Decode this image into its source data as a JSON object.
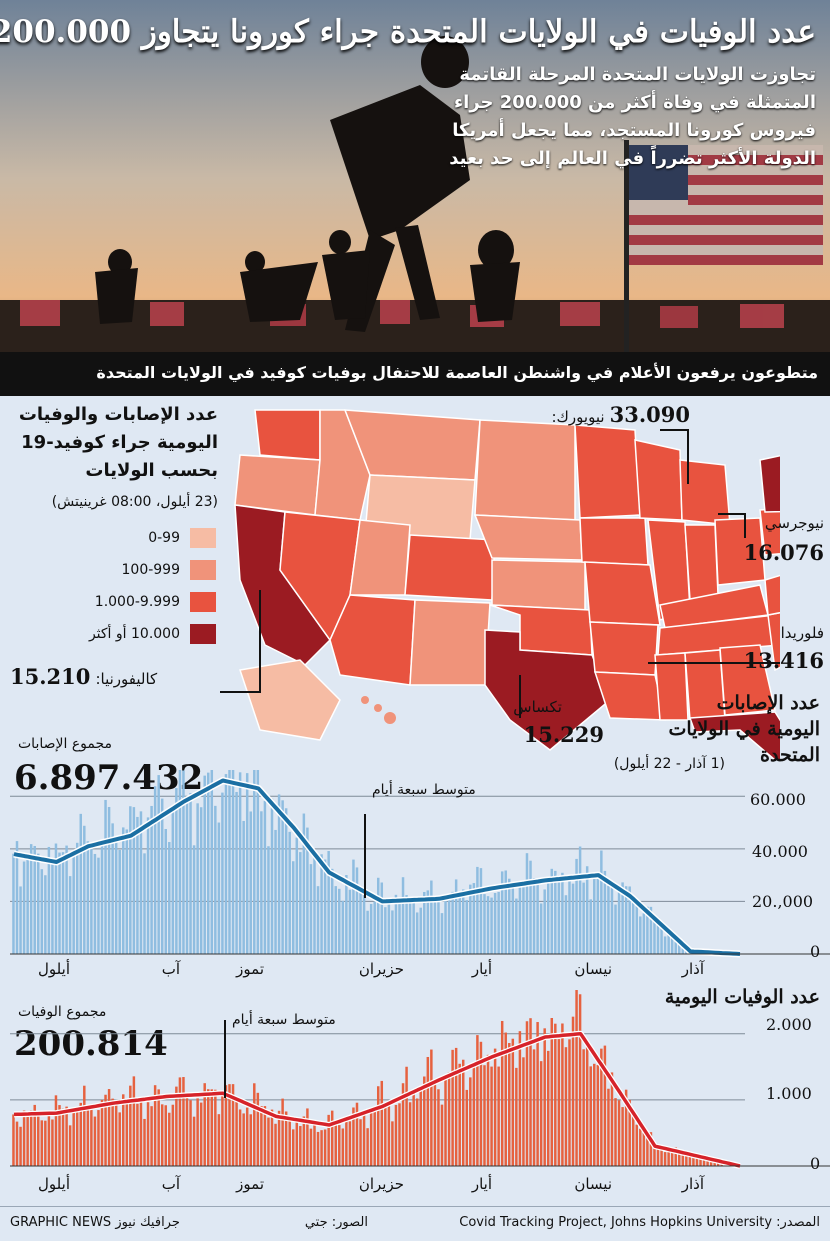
{
  "headline": "عدد الوفيات في الولايات المتحدة جراء كورونا يتجاوز 200.000",
  "intro_lines": [
    "تجاوزت الولايات المتحدة المرحلة القاتمة",
    "المتمثلة في وفاة أكثر من 200.000 جراء",
    "فيروس كورونا المستجد، مما يجعل أمريكا",
    "الدولة الأكثر تضرراً في العالم إلى حد بعيد"
  ],
  "photo_caption": "متطوعون يرفعون الأعلام في واشنطن العاصمة للاحتفال بوفيات كوفيد في الولايات المتحدة",
  "map": {
    "title_lines": [
      "عدد الإصابات والوفيات",
      "اليومية جراء كوفيد-19",
      "بحسب الولايات"
    ],
    "subtitle": "(23 أيلول، 08:00 غرينيتش)",
    "legend": [
      {
        "label": "0-99",
        "color": "#f6bca4"
      },
      {
        "label": "100-999",
        "color": "#f0937a"
      },
      {
        "label": "1.000-9.999",
        "color": "#e8533f"
      },
      {
        "label": "10.000 أو أكثر",
        "color": "#9b1b22"
      }
    ],
    "callouts": {
      "newyork": {
        "name": "نيويورك:",
        "value": "33.090"
      },
      "newjersey": {
        "name": "نيوجرسي",
        "value": "16.076"
      },
      "florida": {
        "name": "فلوريدا",
        "value": "13.416"
      },
      "texas": {
        "name": "تكساس",
        "value": "15.229"
      },
      "california": {
        "name": "كاليفورنيا:",
        "value": "15.210"
      }
    }
  },
  "cases": {
    "title_lines": [
      "عدد الإصابات",
      "اليومية في الولايات",
      "المتحدة"
    ],
    "period": "(1 آذار - 22 أيلول)",
    "total_label": "مجموع الإصابات",
    "total_value": "6.897.432",
    "avg_label": "متوسط سبعة أيام",
    "y_ticks": [
      "60.000",
      "40.000",
      "20.,000",
      "0"
    ],
    "months": [
      "آذار",
      "نيسان",
      "أيار",
      "حزيران",
      "تموز",
      "آب",
      "أيلول"
    ]
  },
  "deaths": {
    "title": "عدد الوفيات اليومية",
    "total_label": "مجموع الوفيات",
    "total_value": "200.814",
    "avg_label": "متوسط سبعة أيام",
    "y_ticks": [
      "2.000",
      "1.000",
      "0"
    ],
    "months": [
      "آذار",
      "نيسان",
      "أيار",
      "حزيران",
      "تموز",
      "آب",
      "أيلول"
    ]
  },
  "footer": {
    "source": "المصدر: Covid Tracking Project, Johns Hopkins University",
    "photos": "الصور: جتي",
    "brand": "GRAPHIC NEWS جرافيك نيوز"
  },
  "chart_data": [
    {
      "type": "bar",
      "title": "عدد الإصابات اليومية في الولايات المتحدة",
      "x_range": [
        "2020-03-01",
        "2020-09-22"
      ],
      "ylim": [
        0,
        70000
      ],
      "series": [
        {
          "name": "متوسط سبعة أيام",
          "type": "line",
          "x": [
            "2020-03-01",
            "2020-03-15",
            "2020-04-01",
            "2020-04-10",
            "2020-04-25",
            "2020-05-10",
            "2020-05-25",
            "2020-06-10",
            "2020-06-25",
            "2020-07-05",
            "2020-07-15",
            "2020-07-25",
            "2020-08-05",
            "2020-08-20",
            "2020-09-01",
            "2020-09-10",
            "2020-09-22"
          ],
          "values": [
            0,
            1000,
            22000,
            30000,
            28000,
            25000,
            21000,
            20000,
            31000,
            48000,
            63000,
            66000,
            58000,
            45000,
            41000,
            35000,
            38000
          ]
        }
      ]
    },
    {
      "type": "bar",
      "title": "عدد الوفيات اليومية",
      "x_range": [
        "2020-03-01",
        "2020-09-22"
      ],
      "ylim": [
        0,
        2600
      ],
      "series": [
        {
          "name": "متوسط سبعة أيام",
          "type": "line",
          "x": [
            "2020-03-01",
            "2020-03-25",
            "2020-04-05",
            "2020-04-15",
            "2020-04-25",
            "2020-05-10",
            "2020-05-25",
            "2020-06-10",
            "2020-06-25",
            "2020-07-10",
            "2020-07-25",
            "2020-08-10",
            "2020-08-25",
            "2020-09-10",
            "2020-09-22"
          ],
          "values": [
            0,
            300,
            1200,
            2000,
            1950,
            1650,
            1300,
            900,
            620,
            750,
            1100,
            1050,
            950,
            800,
            780
          ]
        }
      ]
    }
  ]
}
